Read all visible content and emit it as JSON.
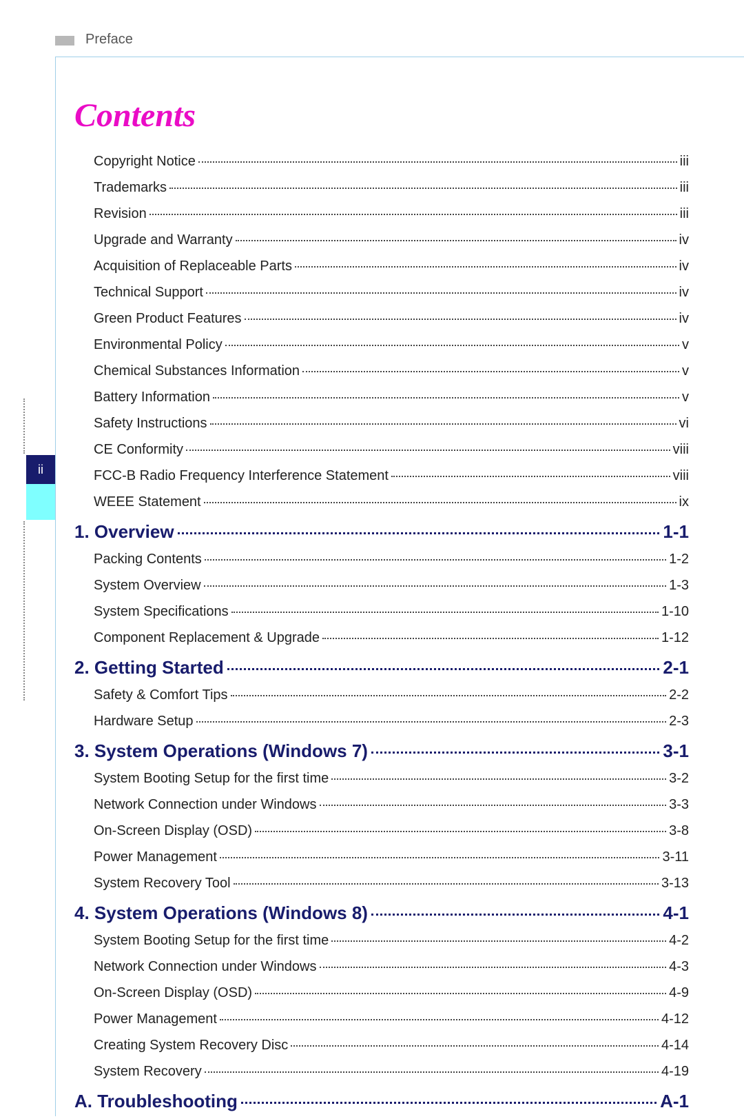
{
  "header": {
    "section": "Preface"
  },
  "sideTab": {
    "pageNumber": "ii"
  },
  "title": "Contents",
  "colors": {
    "title": "#ea0cc6",
    "heading": "#181c6c",
    "body": "#222222",
    "rule": "#9fcfe8",
    "tabBg": "#181c6c",
    "tabLight": "#7fffff",
    "headerBar": "#b8b8b8"
  },
  "typography": {
    "title_fontsize": 48,
    "heading_fontsize": 26,
    "entry_fontsize": 20,
    "title_style": "bold italic",
    "heading_style": "bold"
  },
  "toc": [
    {
      "type": "entry",
      "label": "Copyright Notice",
      "page": "iii"
    },
    {
      "type": "entry",
      "label": "Trademarks",
      "page": "iii"
    },
    {
      "type": "entry",
      "label": "Revision",
      "page": "iii"
    },
    {
      "type": "entry",
      "label": "Upgrade and Warranty",
      "page": "iv"
    },
    {
      "type": "entry",
      "label": "Acquisition of Replaceable Parts",
      "page": "iv"
    },
    {
      "type": "entry",
      "label": "Technical Support",
      "page": "iv"
    },
    {
      "type": "entry",
      "label": "Green Product Features",
      "page": "iv"
    },
    {
      "type": "entry",
      "label": "Environmental Policy",
      "page": "v"
    },
    {
      "type": "entry",
      "label": "Chemical Substances Information",
      "page": "v"
    },
    {
      "type": "entry",
      "label": "Battery Information",
      "page": "v"
    },
    {
      "type": "entry",
      "label": "Safety Instructions",
      "page": "vi"
    },
    {
      "type": "entry",
      "label": "CE Conformity",
      "page": "viii"
    },
    {
      "type": "entry",
      "label": "FCC-B Radio Frequency Interference Statement",
      "page": "viii"
    },
    {
      "type": "entry",
      "label": "WEEE Statement",
      "page": "ix"
    },
    {
      "type": "heading",
      "label": "1. Overview",
      "page": "1-1"
    },
    {
      "type": "entry",
      "label": "Packing Contents",
      "page": "1-2"
    },
    {
      "type": "entry",
      "label": "System Overview",
      "page": "1-3"
    },
    {
      "type": "entry",
      "label": "System Specifications",
      "page": "1-10"
    },
    {
      "type": "entry",
      "label": "Component Replacement & Upgrade",
      "page": "1-12"
    },
    {
      "type": "heading",
      "label": "2. Getting Started",
      "page": "2-1"
    },
    {
      "type": "entry",
      "label": "Safety & Comfort Tips",
      "page": "2-2"
    },
    {
      "type": "entry",
      "label": "Hardware Setup",
      "page": "2-3"
    },
    {
      "type": "heading",
      "label": "3. System Operations (Windows 7)",
      "page": "3-1"
    },
    {
      "type": "entry",
      "label": "System Booting Setup for the first time",
      "page": "3-2"
    },
    {
      "type": "entry",
      "label": "Network Connection under Windows",
      "page": "3-3"
    },
    {
      "type": "entry",
      "label": "On-Screen Display (OSD)",
      "page": "3-8"
    },
    {
      "type": "entry",
      "label": "Power Management",
      "page": "3-11"
    },
    {
      "type": "entry",
      "label": "System Recovery Tool",
      "page": "3-13"
    },
    {
      "type": "heading",
      "label": "4. System Operations (Windows 8)",
      "page": "4-1"
    },
    {
      "type": "entry",
      "label": "System Booting Setup for the first time",
      "page": "4-2"
    },
    {
      "type": "entry",
      "label": "Network Connection under Windows",
      "page": "4-3"
    },
    {
      "type": "entry",
      "label": "On-Screen Display (OSD)",
      "page": "4-9"
    },
    {
      "type": "entry",
      "label": "Power Management",
      "page": "4-12"
    },
    {
      "type": "entry",
      "label": "Creating System Recovery Disc",
      "page": "4-14"
    },
    {
      "type": "entry",
      "label": "System Recovery",
      "page": "4-19"
    },
    {
      "type": "heading",
      "label": "A. Troubleshooting",
      "page": "A-1"
    }
  ]
}
